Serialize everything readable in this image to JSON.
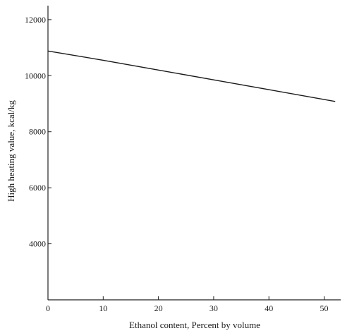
{
  "chart_data": {
    "type": "line",
    "title": "",
    "xlabel": "Ethanol content, Percent by volume",
    "ylabel": "High heating value, kcal/kg",
    "xlim": [
      0,
      53
    ],
    "ylim": [
      2000,
      12500
    ],
    "x_ticks": [
      0,
      10,
      20,
      30,
      40,
      50
    ],
    "y_ticks": [
      4000,
      6000,
      8000,
      10000,
      12000
    ],
    "x_tick_labels": [
      "0",
      "10",
      "20",
      "30",
      "40",
      "50"
    ],
    "y_tick_labels": [
      "4000",
      "6000",
      "8000",
      "10000",
      "12000"
    ],
    "grid": false,
    "legend": "none",
    "series": [
      {
        "x": [
          0,
          10,
          20,
          30,
          40,
          52
        ],
        "values": [
          10880,
          10550,
          10200,
          9850,
          9500,
          9080
        ]
      }
    ]
  }
}
